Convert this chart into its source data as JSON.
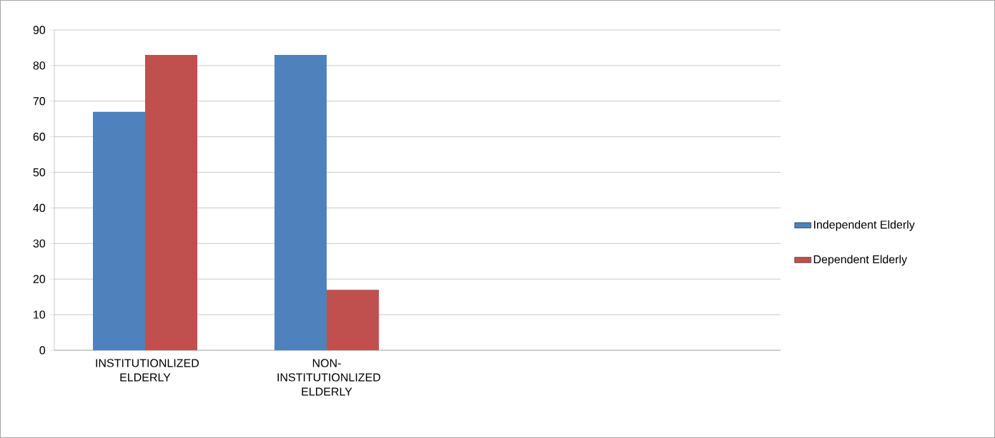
{
  "chart_data": {
    "type": "bar",
    "categories": [
      "INSTITUTIONLIZED ELDERLY",
      "NON-INSTITUTIONLIZED ELDERLY",
      null,
      null
    ],
    "series": [
      {
        "name": "Independent Elderly",
        "color": "#4f81bd",
        "values": [
          67,
          83,
          null,
          null
        ]
      },
      {
        "name": "Dependent Elderly",
        "color": "#c0504d",
        "values": [
          83,
          17,
          null,
          null
        ]
      }
    ],
    "ylim": [
      0,
      90
    ],
    "yticks": [
      0,
      10,
      20,
      30,
      40,
      50,
      60,
      70,
      80,
      90
    ],
    "grid": "y",
    "legend": "right"
  }
}
